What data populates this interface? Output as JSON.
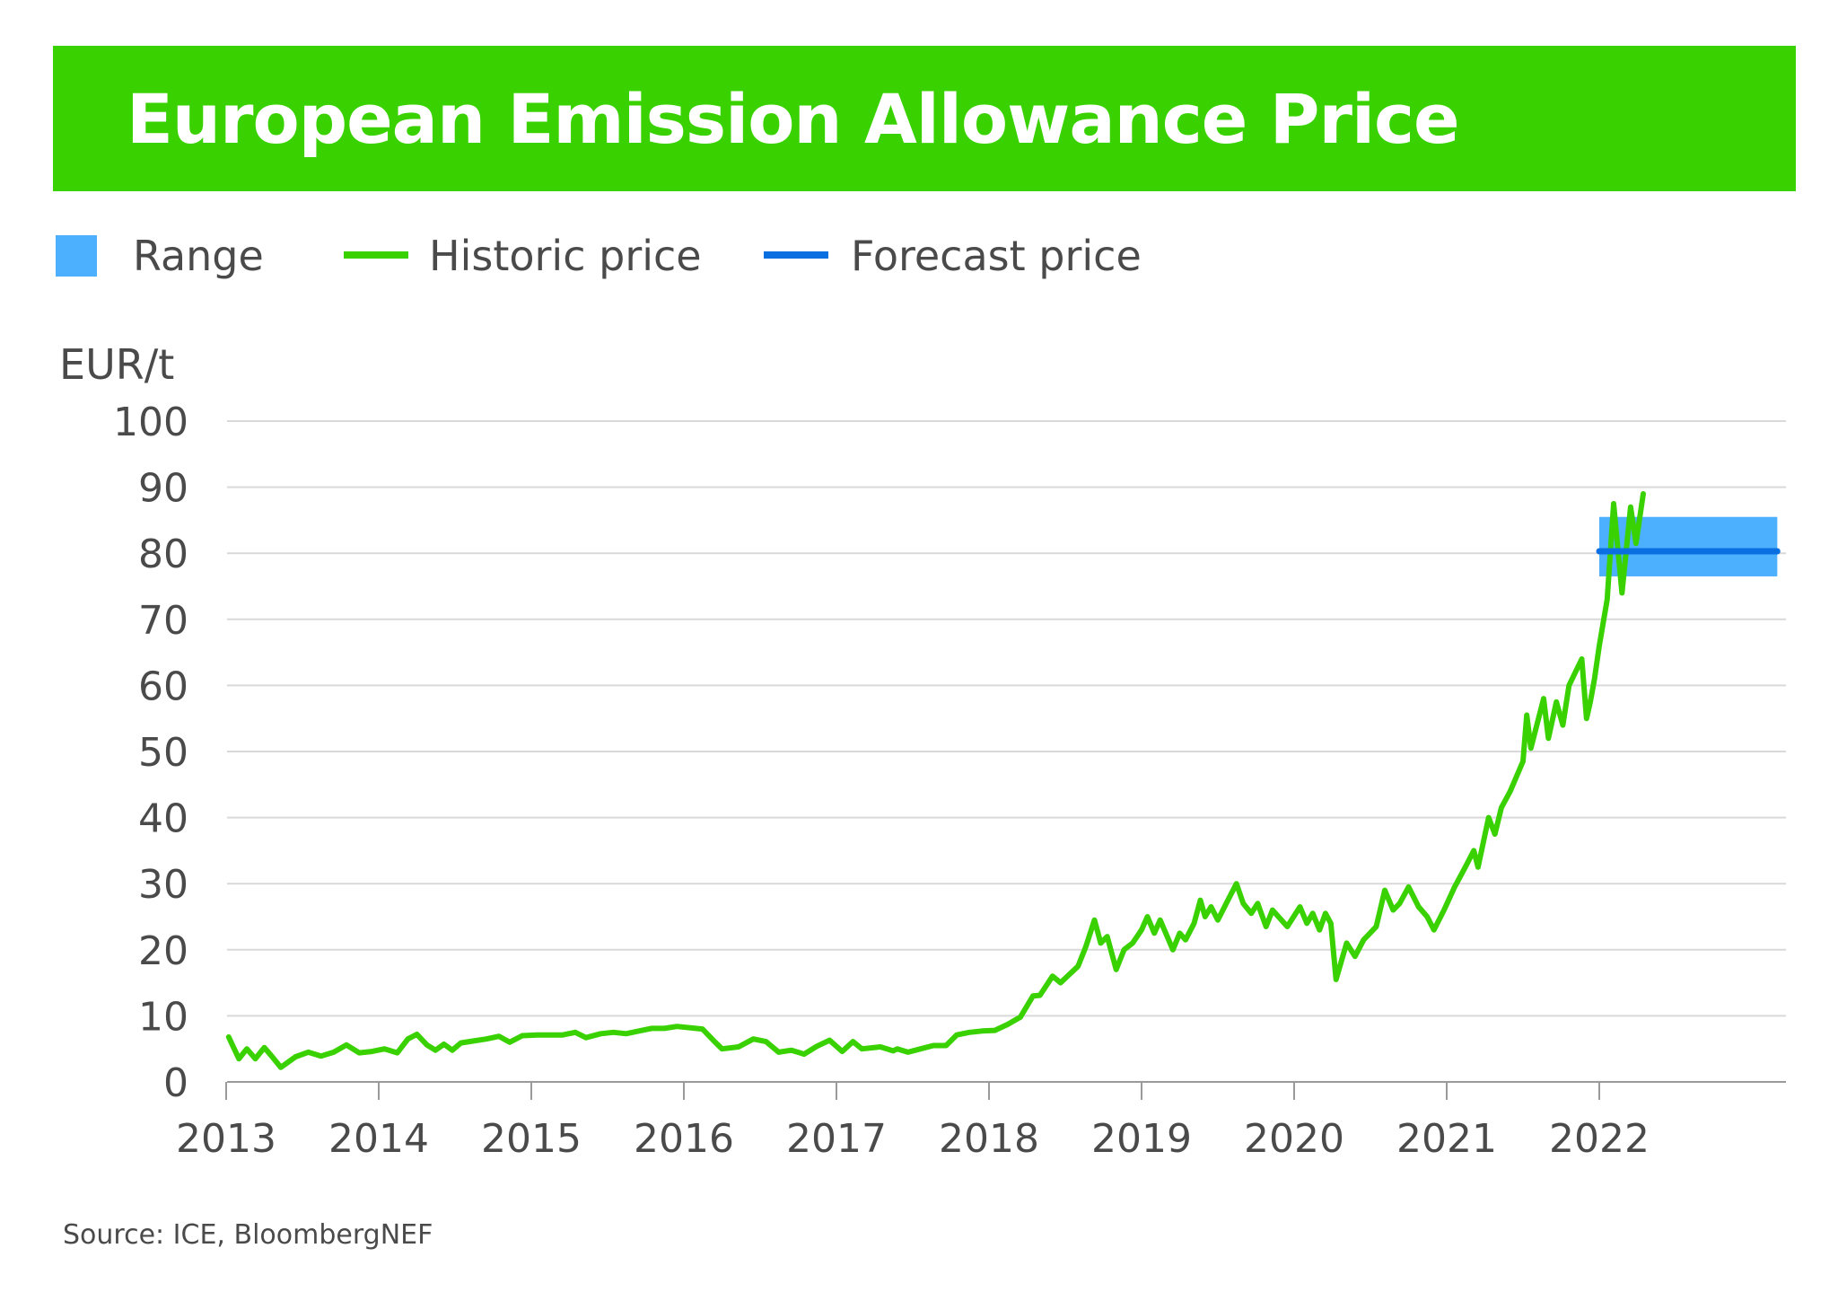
{
  "title": "European Emission Allowance Price",
  "legend": [
    {
      "label": "Range",
      "kind": "box",
      "color": "#4db0ff"
    },
    {
      "label": "Historic price",
      "kind": "line",
      "color": "#39d200"
    },
    {
      "label": "Forecast price",
      "kind": "line",
      "color": "#0a6fe0"
    }
  ],
  "unit": "EUR/t",
  "source": "Source: ICE, BloombergNEF",
  "colors": {
    "banner": "#39d200",
    "historic": "#39d200",
    "forecast": "#0a6fe0",
    "range": "#4db0ff",
    "grid": "#d9d9d9",
    "axis": "#9a9a9a",
    "text": "#4a4a4a"
  },
  "chart_data": {
    "type": "line",
    "title": "European Emission Allowance Price",
    "ylabel": "EUR/t",
    "xlabel": "",
    "ylim": [
      0,
      100
    ],
    "xlim": [
      "2013-01",
      "2023-03"
    ],
    "yticks": [
      0,
      10,
      20,
      30,
      40,
      50,
      60,
      70,
      80,
      90,
      100
    ],
    "xticks": [
      "2013",
      "2014",
      "2015",
      "2016",
      "2017",
      "2018",
      "2019",
      "2020",
      "2021",
      "2022"
    ],
    "grid": true,
    "legend_position": "top-left",
    "series": [
      {
        "name": "Historic price",
        "color": "#39d200",
        "points": [
          [
            "2013-01-07",
            6.8
          ],
          [
            "2013-02-01",
            3.5
          ],
          [
            "2013-02-20",
            5.0
          ],
          [
            "2013-03-10",
            3.5
          ],
          [
            "2013-04-01",
            5.2
          ],
          [
            "2013-04-20",
            3.8
          ],
          [
            "2013-05-10",
            2.2
          ],
          [
            "2013-06-15",
            3.8
          ],
          [
            "2013-07-15",
            4.5
          ],
          [
            "2013-08-15",
            3.9
          ],
          [
            "2013-09-15",
            4.5
          ],
          [
            "2013-10-15",
            5.6
          ],
          [
            "2013-11-15",
            4.4
          ],
          [
            "2013-12-15",
            4.6
          ],
          [
            "2014-01-15",
            5.0
          ],
          [
            "2014-02-15",
            4.4
          ],
          [
            "2014-03-10",
            6.5
          ],
          [
            "2014-04-01",
            7.2
          ],
          [
            "2014-04-25",
            5.6
          ],
          [
            "2014-05-15",
            4.8
          ],
          [
            "2014-06-05",
            5.7
          ],
          [
            "2014-06-25",
            4.8
          ],
          [
            "2014-07-15",
            5.9
          ],
          [
            "2014-08-15",
            6.2
          ],
          [
            "2014-09-15",
            6.5
          ],
          [
            "2014-10-15",
            6.9
          ],
          [
            "2014-11-10",
            6.0
          ],
          [
            "2014-12-10",
            7.0
          ],
          [
            "2015-01-15",
            7.1
          ],
          [
            "2015-03-15",
            7.1
          ],
          [
            "2015-04-15",
            7.5
          ],
          [
            "2015-05-10",
            6.7
          ],
          [
            "2015-06-15",
            7.3
          ],
          [
            "2015-07-15",
            7.5
          ],
          [
            "2015-08-15",
            7.3
          ],
          [
            "2015-09-15",
            7.7
          ],
          [
            "2015-10-15",
            8.1
          ],
          [
            "2015-11-15",
            8.1
          ],
          [
            "2015-12-15",
            8.4
          ],
          [
            "2016-02-15",
            8.0
          ],
          [
            "2016-03-15",
            6.0
          ],
          [
            "2016-04-01",
            5.0
          ],
          [
            "2016-05-10",
            5.3
          ],
          [
            "2016-06-15",
            6.5
          ],
          [
            "2016-07-15",
            6.1
          ],
          [
            "2016-08-15",
            4.5
          ],
          [
            "2016-09-15",
            4.8
          ],
          [
            "2016-10-15",
            4.2
          ],
          [
            "2016-11-15",
            5.4
          ],
          [
            "2016-12-15",
            6.3
          ],
          [
            "2017-01-15",
            4.6
          ],
          [
            "2017-02-10",
            6.1
          ],
          [
            "2017-03-01",
            5.0
          ],
          [
            "2017-04-15",
            5.3
          ],
          [
            "2017-05-15",
            4.7
          ],
          [
            "2017-05-25",
            5.0
          ],
          [
            "2017-06-20",
            4.5
          ],
          [
            "2017-07-20",
            5.0
          ],
          [
            "2017-08-20",
            5.5
          ],
          [
            "2017-09-20",
            5.5
          ],
          [
            "2017-10-15",
            7.1
          ],
          [
            "2017-11-15",
            7.5
          ],
          [
            "2017-12-15",
            7.7
          ],
          [
            "2018-01-15",
            7.8
          ],
          [
            "2018-02-15",
            8.7
          ],
          [
            "2018-03-15",
            9.8
          ],
          [
            "2018-04-15",
            13.0
          ],
          [
            "2018-05-01",
            13.1
          ],
          [
            "2018-06-01",
            16.0
          ],
          [
            "2018-06-20",
            15.0
          ],
          [
            "2018-08-01",
            17.5
          ],
          [
            "2018-08-20",
            20.5
          ],
          [
            "2018-09-10",
            24.5
          ],
          [
            "2018-09-25",
            21.0
          ],
          [
            "2018-10-10",
            22.0
          ],
          [
            "2018-11-01",
            17.0
          ],
          [
            "2018-11-20",
            20.0
          ],
          [
            "2018-12-10",
            21.0
          ],
          [
            "2019-01-01",
            23.0
          ],
          [
            "2019-01-15",
            25.0
          ],
          [
            "2019-02-01",
            22.5
          ],
          [
            "2019-02-15",
            24.5
          ],
          [
            "2019-03-15",
            20.0
          ],
          [
            "2019-04-01",
            22.5
          ],
          [
            "2019-04-15",
            21.5
          ],
          [
            "2019-05-05",
            24.0
          ],
          [
            "2019-05-20",
            27.5
          ],
          [
            "2019-06-01",
            25.0
          ],
          [
            "2019-06-15",
            26.5
          ],
          [
            "2019-07-01",
            24.5
          ],
          [
            "2019-07-25",
            27.5
          ],
          [
            "2019-08-15",
            30.0
          ],
          [
            "2019-09-01",
            27.0
          ],
          [
            "2019-09-20",
            25.5
          ],
          [
            "2019-10-05",
            27.0
          ],
          [
            "2019-10-25",
            23.5
          ],
          [
            "2019-11-10",
            26.0
          ],
          [
            "2019-12-15",
            23.5
          ],
          [
            "2020-01-15",
            26.5
          ],
          [
            "2020-02-01",
            24.0
          ],
          [
            "2020-02-15",
            25.5
          ],
          [
            "2020-03-01",
            23.0
          ],
          [
            "2020-03-15",
            25.5
          ],
          [
            "2020-03-28",
            24.0
          ],
          [
            "2020-04-10",
            15.5
          ],
          [
            "2020-05-05",
            21.0
          ],
          [
            "2020-05-25",
            19.0
          ],
          [
            "2020-06-15",
            21.5
          ],
          [
            "2020-07-15",
            23.5
          ],
          [
            "2020-08-05",
            29.0
          ],
          [
            "2020-08-25",
            26.0
          ],
          [
            "2020-09-10",
            27.0
          ],
          [
            "2020-10-01",
            29.5
          ],
          [
            "2020-10-25",
            26.5
          ],
          [
            "2020-11-15",
            25.0
          ],
          [
            "2020-12-01",
            23.0
          ],
          [
            "2020-12-25",
            26.0
          ],
          [
            "2021-01-20",
            29.5
          ],
          [
            "2021-02-15",
            32.5
          ],
          [
            "2021-03-05",
            35.0
          ],
          [
            "2021-03-15",
            32.5
          ],
          [
            "2021-04-10",
            40.0
          ],
          [
            "2021-04-25",
            37.5
          ],
          [
            "2021-05-10",
            41.5
          ],
          [
            "2021-06-01",
            44.0
          ],
          [
            "2021-07-01",
            48.5
          ],
          [
            "2021-07-10",
            55.5
          ],
          [
            "2021-07-20",
            50.5
          ],
          [
            "2021-08-20",
            58.0
          ],
          [
            "2021-09-01",
            52.0
          ],
          [
            "2021-09-20",
            57.5
          ],
          [
            "2021-10-05",
            54.0
          ],
          [
            "2021-10-20",
            60.0
          ],
          [
            "2021-11-20",
            64.0
          ],
          [
            "2021-12-01",
            55.0
          ],
          [
            "2021-12-10",
            57.5
          ],
          [
            "2021-12-20",
            61.0
          ],
          [
            "2022-01-01",
            66.0
          ],
          [
            "2022-01-20",
            73.0
          ],
          [
            "2022-02-05",
            87.5
          ],
          [
            "2022-02-25",
            74.0
          ],
          [
            "2022-03-15",
            87.0
          ],
          [
            "2022-03-28",
            81.5
          ],
          [
            "2022-04-15",
            89.0
          ]
        ]
      },
      {
        "name": "Forecast price",
        "color": "#0a6fe0",
        "points": [
          [
            "2022-01-01",
            80.3
          ],
          [
            "2023-03-01",
            80.3
          ]
        ]
      }
    ],
    "range": {
      "name": "Range",
      "color": "#4db0ff",
      "x": [
        "2022-01-01",
        "2023-03-01"
      ],
      "low": 76.5,
      "high": 85.5
    }
  }
}
